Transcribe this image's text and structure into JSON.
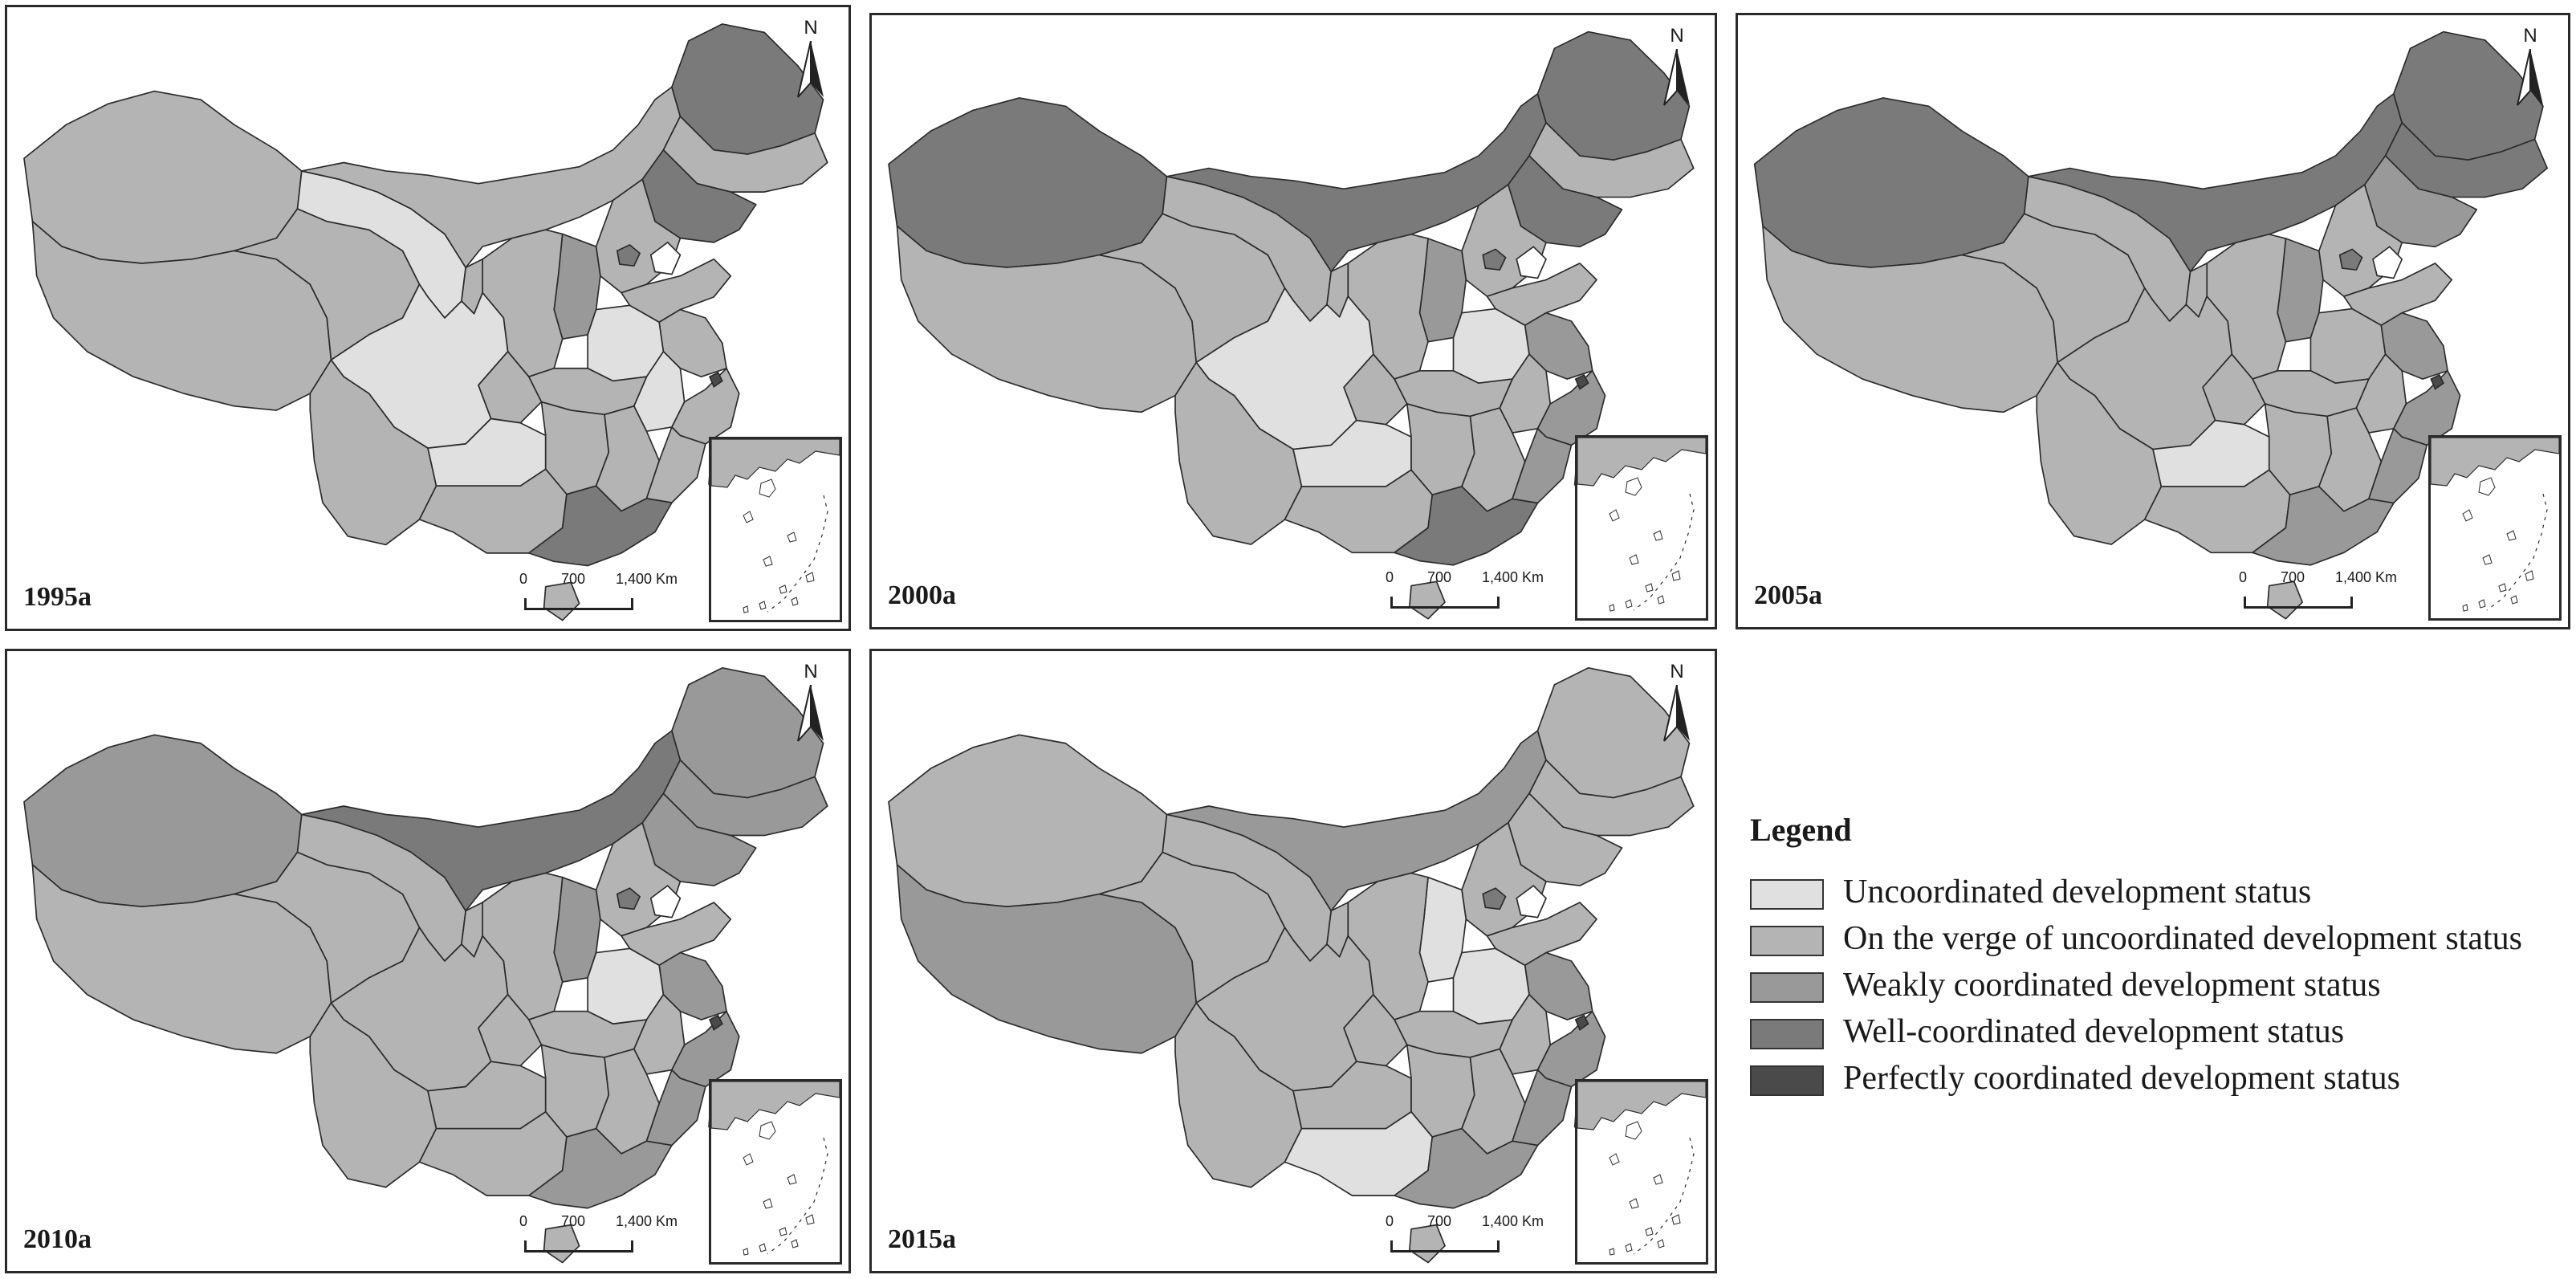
{
  "colors": {
    "uncoordinated": "#e0e0e0",
    "verge": "#b4b4b4",
    "weakly": "#999999",
    "well": "#7a7a7a",
    "perfectly": "#4a4a4a",
    "border": "#2b2b2b"
  },
  "north_label": "N",
  "scale": {
    "t0": "0",
    "t1": "700",
    "t2": "1,400 Km"
  },
  "panels": [
    {
      "year": "1995a",
      "shading": {
        "xinjiang": "verge",
        "tibet": "verge",
        "qinghai": "verge",
        "gansu": "uncoordinated",
        "inner_mongolia": "verge",
        "heilongjiang": "well",
        "jilin": "verge",
        "liaoning": "well",
        "sichuan": "uncoordinated",
        "yunnan": "verge",
        "guizhou": "uncoordinated",
        "guangxi": "verge",
        "guangdong": "well",
        "hainan": "verge",
        "hunan": "verge",
        "hubei": "verge",
        "henan": "uncoordinated",
        "shaanxi": "verge",
        "shanxi": "weakly",
        "hebei": "verge",
        "shandong": "verge",
        "jiangsu": "verge",
        "anhui": "uncoordinated",
        "zhejiang": "verge",
        "fujian": "verge",
        "jiangxi": "verge",
        "ningxia": "verge",
        "chongqing": "verge"
      }
    },
    {
      "year": "2000a",
      "shading": {
        "xinjiang": "well",
        "tibet": "verge",
        "qinghai": "verge",
        "gansu": "verge",
        "inner_mongolia": "well",
        "heilongjiang": "well",
        "jilin": "verge",
        "liaoning": "well",
        "sichuan": "uncoordinated",
        "yunnan": "verge",
        "guizhou": "uncoordinated",
        "guangxi": "verge",
        "guangdong": "well",
        "hainan": "verge",
        "hunan": "verge",
        "hubei": "verge",
        "henan": "uncoordinated",
        "shaanxi": "verge",
        "shanxi": "weakly",
        "hebei": "verge",
        "shandong": "verge",
        "jiangsu": "weakly",
        "anhui": "verge",
        "zhejiang": "weakly",
        "fujian": "weakly",
        "jiangxi": "verge",
        "ningxia": "verge",
        "chongqing": "verge"
      }
    },
    {
      "year": "2005a",
      "shading": {
        "xinjiang": "well",
        "tibet": "verge",
        "qinghai": "verge",
        "gansu": "verge",
        "inner_mongolia": "well",
        "heilongjiang": "well",
        "jilin": "well",
        "liaoning": "weakly",
        "sichuan": "verge",
        "yunnan": "verge",
        "guizhou": "uncoordinated",
        "guangxi": "verge",
        "guangdong": "weakly",
        "hainan": "verge",
        "hunan": "verge",
        "hubei": "verge",
        "henan": "verge",
        "shaanxi": "verge",
        "shanxi": "weakly",
        "hebei": "verge",
        "shandong": "verge",
        "jiangsu": "weakly",
        "anhui": "verge",
        "zhejiang": "weakly",
        "fujian": "weakly",
        "jiangxi": "verge",
        "ningxia": "verge",
        "chongqing": "verge"
      }
    },
    {
      "year": "2010a",
      "shading": {
        "xinjiang": "weakly",
        "tibet": "verge",
        "qinghai": "verge",
        "gansu": "verge",
        "inner_mongolia": "well",
        "heilongjiang": "weakly",
        "jilin": "weakly",
        "liaoning": "weakly",
        "sichuan": "verge",
        "yunnan": "verge",
        "guizhou": "verge",
        "guangxi": "verge",
        "guangdong": "weakly",
        "hainan": "verge",
        "hunan": "verge",
        "hubei": "verge",
        "henan": "uncoordinated",
        "shaanxi": "verge",
        "shanxi": "weakly",
        "hebei": "verge",
        "shandong": "verge",
        "jiangsu": "weakly",
        "anhui": "verge",
        "zhejiang": "weakly",
        "fujian": "weakly",
        "jiangxi": "verge",
        "ningxia": "verge",
        "chongqing": "verge"
      }
    },
    {
      "year": "2015a",
      "shading": {
        "xinjiang": "verge",
        "tibet": "weakly",
        "qinghai": "verge",
        "gansu": "verge",
        "inner_mongolia": "weakly",
        "heilongjiang": "verge",
        "jilin": "verge",
        "liaoning": "verge",
        "sichuan": "verge",
        "yunnan": "verge",
        "guizhou": "verge",
        "guangxi": "uncoordinated",
        "guangdong": "weakly",
        "hainan": "verge",
        "hunan": "verge",
        "hubei": "verge",
        "henan": "uncoordinated",
        "shaanxi": "verge",
        "shanxi": "uncoordinated",
        "hebei": "verge",
        "shandong": "verge",
        "jiangsu": "weakly",
        "anhui": "verge",
        "zhejiang": "weakly",
        "fujian": "weakly",
        "jiangxi": "verge",
        "ningxia": "verge",
        "chongqing": "verge"
      }
    }
  ],
  "legend": {
    "title": "Legend",
    "items": [
      {
        "key": "uncoordinated",
        "label": "Uncoordinated development status"
      },
      {
        "key": "verge",
        "label": "On the verge of uncoordinated development status"
      },
      {
        "key": "weakly",
        "label": "Weakly coordinated development status"
      },
      {
        "key": "well",
        "label": "Well-coordinated development status"
      },
      {
        "key": "perfectly",
        "label": "Perfectly coordinated development status"
      }
    ]
  }
}
